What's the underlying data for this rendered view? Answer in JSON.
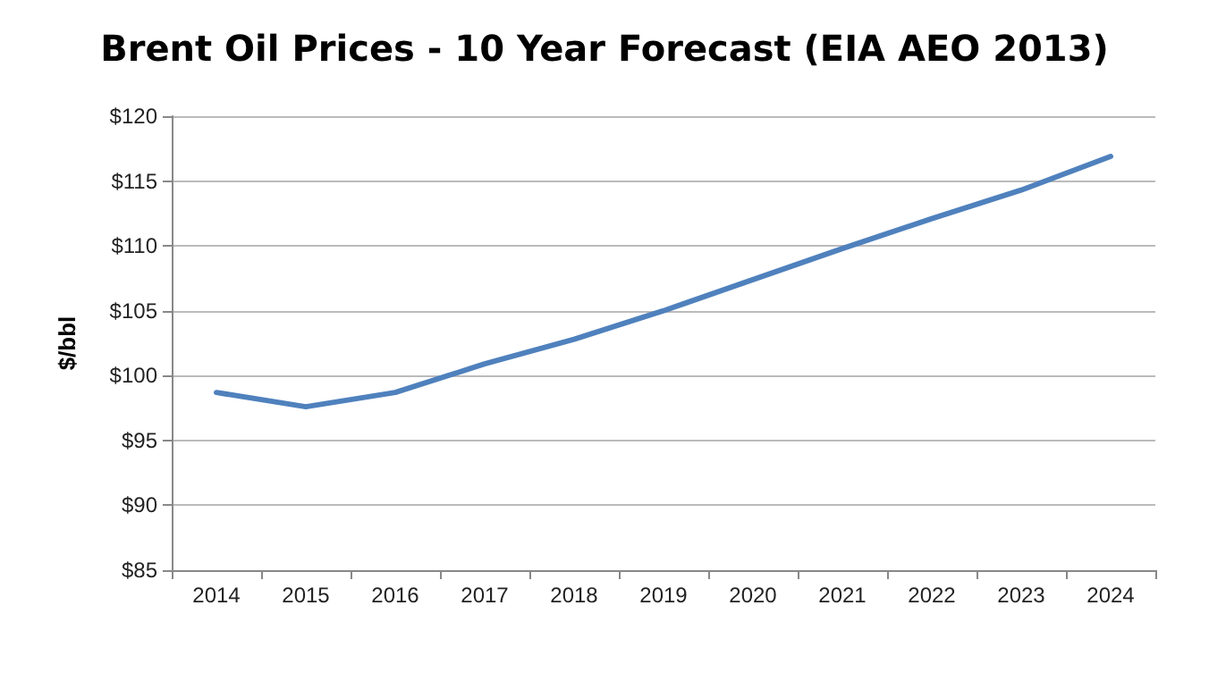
{
  "chart_data": {
    "type": "line",
    "title": "Brent Oil Prices - 10 Year Forecast (EIA AEO 2013)",
    "ylabel": "$/bbl",
    "categories": [
      "2014",
      "2015",
      "2016",
      "2017",
      "2018",
      "2019",
      "2020",
      "2021",
      "2022",
      "2023",
      "2024"
    ],
    "series": [
      {
        "color": "#4f81bd",
        "values": [
          98.7,
          97.6,
          98.7,
          100.9,
          102.8,
          105.0,
          107.4,
          109.8,
          112.1,
          114.3,
          116.9
        ]
      }
    ],
    "ylim": [
      85,
      120
    ],
    "yticks": [
      {
        "value": 85,
        "label": "$85"
      },
      {
        "value": 90,
        "label": "$90"
      },
      {
        "value": 95,
        "label": "$95"
      },
      {
        "value": 100,
        "label": "$100"
      },
      {
        "value": 105,
        "label": "$105"
      },
      {
        "value": 110,
        "label": "$110"
      },
      {
        "value": 115,
        "label": "$115"
      },
      {
        "value": 120,
        "label": "$120"
      }
    ],
    "grid": "y",
    "marker": "none",
    "line_style": "solid"
  }
}
